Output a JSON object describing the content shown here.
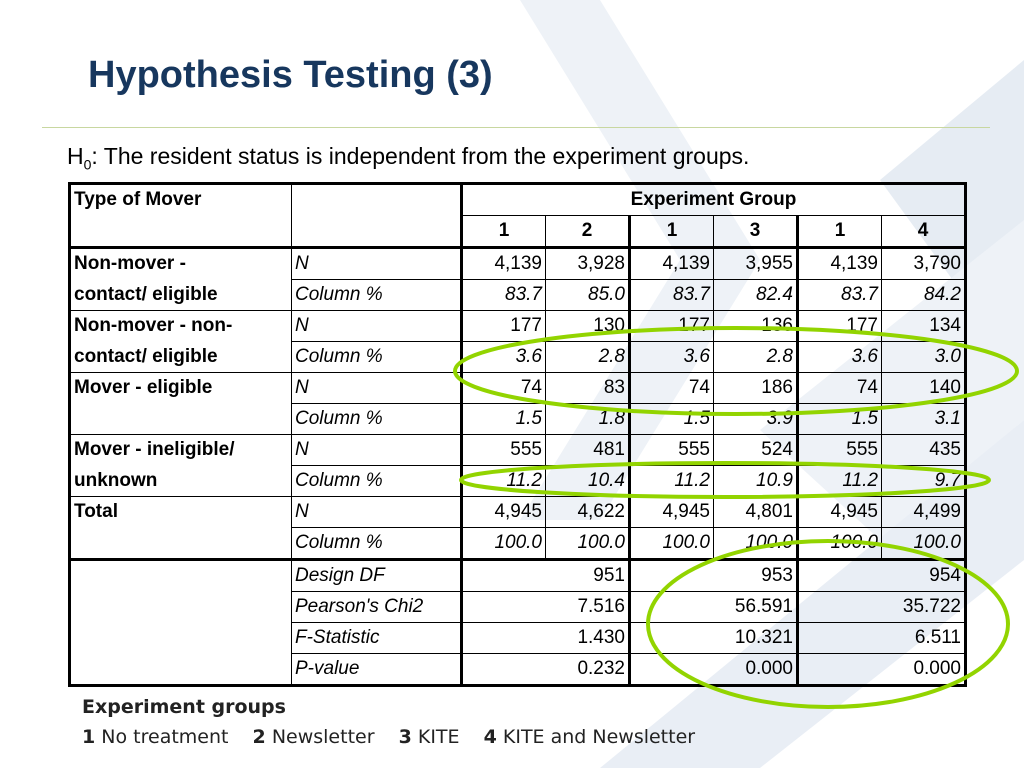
{
  "slide": {
    "title": "Hypothesis Testing (3)",
    "hypothesis_prefix": "H",
    "hypothesis_sub": "0",
    "hypothesis_text": ": The resident status is independent from the experiment groups."
  },
  "table": {
    "header": {
      "type_label": "Type of Mover",
      "group_label": "Experiment Group",
      "cols": [
        "1",
        "2",
        "1",
        "3",
        "1",
        "4"
      ]
    },
    "rows": [
      {
        "category": [
          "Non-mover -",
          "contact/ eligible"
        ],
        "n_label": "N",
        "n": [
          "4,139",
          "3,928",
          "4,139",
          "3,955",
          "4,139",
          "3,790"
        ],
        "pct_label": "Column %",
        "pct": [
          "83.7",
          "85.0",
          "83.7",
          "82.4",
          "83.7",
          "84.2"
        ]
      },
      {
        "category": [
          "Non-mover - non-",
          "contact/ eligible"
        ],
        "n_label": "N",
        "n": [
          "177",
          "130",
          "177",
          "136",
          "177",
          "134"
        ],
        "pct_label": "Column %",
        "pct": [
          "3.6",
          "2.8",
          "3.6",
          "2.8",
          "3.6",
          "3.0"
        ]
      },
      {
        "category": [
          "Mover - eligible",
          ""
        ],
        "n_label": "N",
        "n": [
          "74",
          "83",
          "74",
          "186",
          "74",
          "140"
        ],
        "pct_label": "Column %",
        "pct": [
          "1.5",
          "1.8",
          "1.5",
          "3.9",
          "1.5",
          "3.1"
        ]
      },
      {
        "category": [
          "Mover - ineligible/",
          "unknown"
        ],
        "n_label": "N",
        "n": [
          "555",
          "481",
          "555",
          "524",
          "555",
          "435"
        ],
        "pct_label": "Column %",
        "pct": [
          "11.2",
          "10.4",
          "11.2",
          "10.9",
          "11.2",
          "9.7"
        ]
      },
      {
        "category": [
          "Total",
          ""
        ],
        "n_label": "N",
        "n": [
          "4,945",
          "4,622",
          "4,945",
          "4,801",
          "4,945",
          "4,499"
        ],
        "pct_label": "Column %",
        "pct": [
          "100.0",
          "100.0",
          "100.0",
          "100.0",
          "100.0",
          "100.0"
        ]
      }
    ],
    "stats": [
      {
        "label": "Design DF",
        "values": [
          "951",
          "953",
          "954"
        ]
      },
      {
        "label": "Pearson's Chi2",
        "values": [
          "7.516",
          "56.591",
          "35.722"
        ]
      },
      {
        "label": "F-Statistic",
        "values": [
          "1.430",
          "10.321",
          "6.511"
        ]
      },
      {
        "label": "P-value",
        "values": [
          "0.232",
          "0.000",
          "0.000"
        ]
      }
    ]
  },
  "legend": {
    "title": "Experiment groups",
    "items": [
      {
        "key": "1",
        "label": "No treatment"
      },
      {
        "key": "2",
        "label": "Newsletter"
      },
      {
        "key": "3",
        "label": "KITE"
      },
      {
        "key": "4",
        "label": "KITE and Newsletter"
      }
    ]
  },
  "colors": {
    "title": "#17375e",
    "highlight_ellipse": "#92d400",
    "rule": "#c8d7a0",
    "background_chevron": "#eef2f7"
  }
}
